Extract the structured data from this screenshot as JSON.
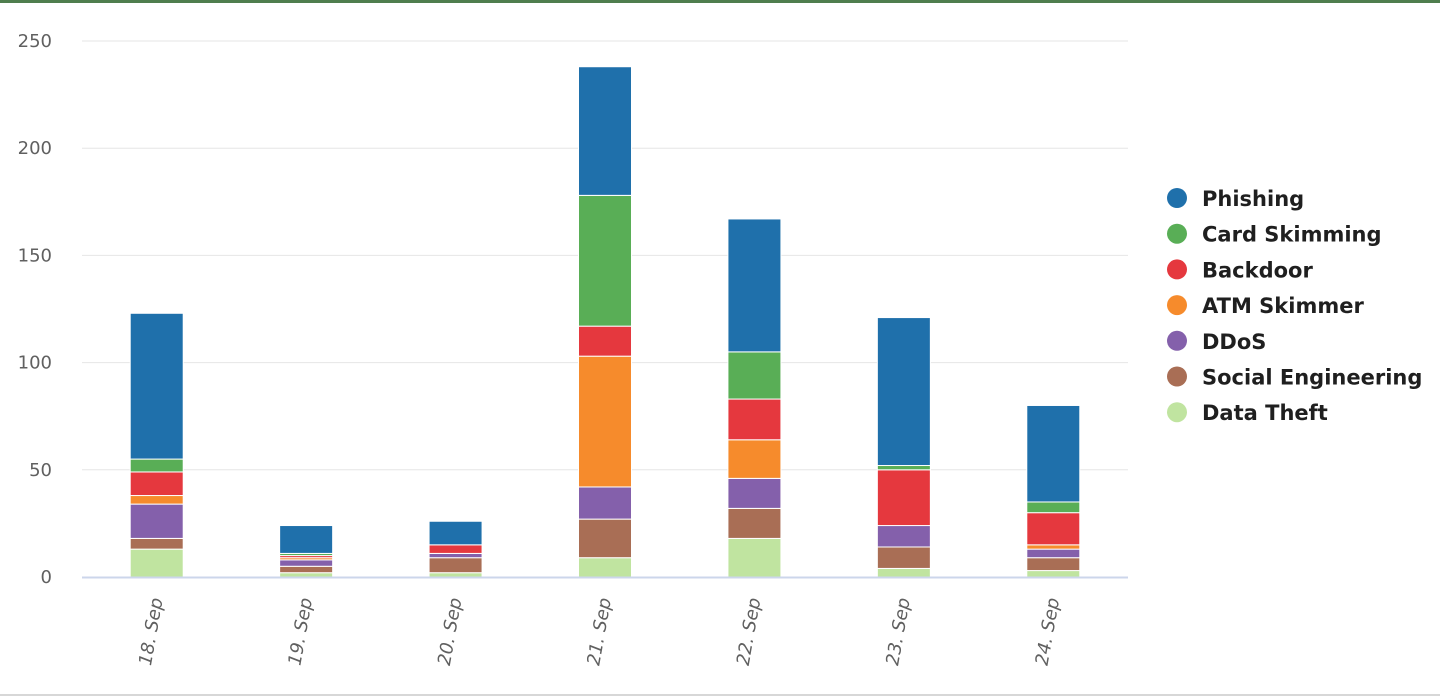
{
  "chart_data": {
    "type": "bar",
    "stacked": true,
    "categories": [
      "18. Sep",
      "19. Sep",
      "20. Sep",
      "21. Sep",
      "22. Sep",
      "23. Sep",
      "24. Sep"
    ],
    "series": [
      {
        "name": "Data Theft",
        "color": "#c0e4a0",
        "values": [
          13,
          2,
          2,
          9,
          18,
          4,
          3
        ]
      },
      {
        "name": "Social Engineering",
        "color": "#a96e55",
        "values": [
          5,
          3,
          7,
          18,
          14,
          10,
          6
        ]
      },
      {
        "name": "DDoS",
        "color": "#8460ab",
        "values": [
          16,
          3,
          2,
          15,
          14,
          10,
          4
        ]
      },
      {
        "name": "ATM Skimmer",
        "color": "#f68b2c",
        "values": [
          4,
          1,
          0,
          61,
          18,
          0,
          2
        ]
      },
      {
        "name": "Backdoor",
        "color": "#e5383e",
        "values": [
          11,
          1,
          4,
          14,
          19,
          26,
          15
        ]
      },
      {
        "name": "Card Skimming",
        "color": "#59ae56",
        "values": [
          6,
          1,
          0,
          61,
          22,
          2,
          5
        ]
      },
      {
        "name": "Phishing",
        "color": "#1f70ab",
        "values": [
          68,
          13,
          11,
          60,
          62,
          69,
          45
        ]
      }
    ],
    "legend_order": [
      "Phishing",
      "Card Skimming",
      "Backdoor",
      "ATM Skimmer",
      "DDoS",
      "Social Engineering",
      "Data Theft"
    ],
    "y_ticks": [
      "0",
      "50",
      "100",
      "150",
      "200",
      "250"
    ],
    "ylim": [
      0,
      250
    ],
    "grid": true,
    "legend_position": "right",
    "title": "",
    "xlabel": "",
    "ylabel": ""
  }
}
